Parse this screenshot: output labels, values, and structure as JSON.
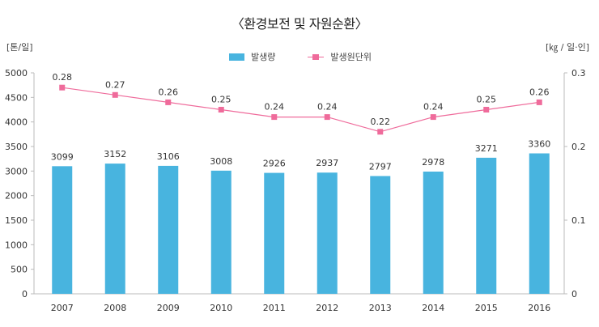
{
  "chart_data": {
    "type": "bar+line",
    "title": "〈환경보전 및 자원순환〉",
    "ylabel_left": "[톤/일]",
    "ylabel_right": "[㎏ / 일·인]",
    "categories": [
      "2007",
      "2008",
      "2009",
      "2010",
      "2011",
      "2012",
      "2013",
      "2014",
      "2015",
      "2016"
    ],
    "left_axis_ticks": [
      0,
      500,
      1000,
      1500,
      2000,
      3000,
      3500,
      4000,
      4500,
      5000
    ],
    "right_axis_ticks": [
      0,
      0.1,
      0.2,
      0.3
    ],
    "ylim_left": [
      0,
      5000
    ],
    "ylim_right": [
      0,
      0.3
    ],
    "grid": false,
    "legend_position": "top-center",
    "series": [
      {
        "name": "발생량",
        "type": "bar",
        "axis": "left",
        "color": "#48b4df",
        "values": [
          3099,
          3152,
          3106,
          3008,
          2926,
          2937,
          2797,
          2978,
          3271,
          3360
        ]
      },
      {
        "name": "발생원단위",
        "type": "line",
        "axis": "right",
        "color": "#ef6b9b",
        "values": [
          0.28,
          0.27,
          0.26,
          0.25,
          0.24,
          0.24,
          0.22,
          0.24,
          0.25,
          0.26
        ]
      }
    ]
  }
}
